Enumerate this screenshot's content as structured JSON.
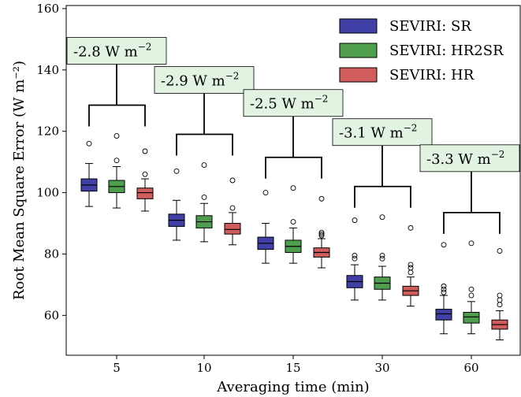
{
  "chart_data": {
    "type": "box",
    "xlabel": "Averaging time (min)",
    "ylabel": "Root Mean Square Error (W m⁻²)",
    "ylim": [
      47,
      161
    ],
    "yticks": [
      60,
      80,
      100,
      120,
      140,
      160
    ],
    "grid": false,
    "legend_placement": "top-right",
    "categories": [
      "5",
      "10",
      "15",
      "30",
      "60"
    ],
    "series": [
      {
        "name": "SEVIRI: SR",
        "color": "#3f3fa6",
        "boxes": [
          {
            "whislo": 95.5,
            "q1": 100.5,
            "med": 102.5,
            "q3": 104.5,
            "whishi": 109.5,
            "fliers": [
              116
            ]
          },
          {
            "whislo": 84.5,
            "q1": 89,
            "med": 91,
            "q3": 93,
            "whishi": 97.5,
            "fliers": [
              107
            ]
          },
          {
            "whislo": 77,
            "q1": 81.5,
            "med": 83.5,
            "q3": 85.5,
            "whishi": 90,
            "fliers": [
              100
            ]
          },
          {
            "whislo": 65,
            "q1": 69,
            "med": 71,
            "q3": 73,
            "whishi": 76.5,
            "fliers": [
              78.5,
              79.5,
              91
            ]
          },
          {
            "whislo": 54,
            "q1": 58.5,
            "med": 60.5,
            "q3": 62,
            "whishi": 66.5,
            "fliers": [
              67.5,
              68.5,
              69.5,
              83
            ]
          }
        ]
      },
      {
        "name": "SEVIRI: HR2SR",
        "color": "#4e9e4e",
        "boxes": [
          {
            "whislo": 95,
            "q1": 100,
            "med": 102,
            "q3": 104,
            "whishi": 108.5,
            "fliers": [
              110.5,
              118.5
            ]
          },
          {
            "whislo": 84,
            "q1": 88.5,
            "med": 90.5,
            "q3": 92.5,
            "whishi": 96.5,
            "fliers": [
              98.5,
              109
            ]
          },
          {
            "whislo": 77,
            "q1": 80.5,
            "med": 82.5,
            "q3": 84.5,
            "whishi": 88.5,
            "fliers": [
              90.5,
              101.5
            ]
          },
          {
            "whislo": 65,
            "q1": 68.5,
            "med": 70.5,
            "q3": 72.5,
            "whishi": 76,
            "fliers": [
              78.5,
              79.5,
              92
            ]
          },
          {
            "whislo": 54,
            "q1": 57.5,
            "med": 59.5,
            "q3": 61,
            "whishi": 64.5,
            "fliers": [
              66.5,
              68.5,
              83.5
            ]
          }
        ]
      },
      {
        "name": "SEVIRI: HR",
        "color": "#d05c5c",
        "boxes": [
          {
            "whislo": 94,
            "q1": 98,
            "med": 100,
            "q3": 101.5,
            "whishi": 104.5,
            "fliers": [
              106,
              113.5
            ]
          },
          {
            "whislo": 83,
            "q1": 86.5,
            "med": 88,
            "q3": 90,
            "whishi": 93.5,
            "fliers": [
              95,
              104
            ]
          },
          {
            "whislo": 75.5,
            "q1": 79,
            "med": 80.5,
            "q3": 82,
            "whishi": 85,
            "fliers": [
              86,
              86.5,
              87,
              98
            ]
          },
          {
            "whislo": 63,
            "q1": 66.5,
            "med": 68,
            "q3": 69.5,
            "whishi": 72.5,
            "fliers": [
              74,
              75.5,
              76.5,
              88.5
            ]
          },
          {
            "whislo": 52,
            "q1": 55.5,
            "med": 57,
            "q3": 58.5,
            "whishi": 61.5,
            "fliers": [
              63.5,
              65,
              66.5,
              81
            ]
          }
        ]
      }
    ],
    "annotations": [
      {
        "category": "5",
        "text": "-2.8 W m",
        "exponent": "−2"
      },
      {
        "category": "10",
        "text": "-2.9 W m",
        "exponent": "−2"
      },
      {
        "category": "15",
        "text": "-2.5 W m",
        "exponent": "−2"
      },
      {
        "category": "30",
        "text": "-3.1 W m",
        "exponent": "−2"
      },
      {
        "category": "60",
        "text": "-3.3 W m",
        "exponent": "−2"
      }
    ],
    "annotation_box_color": "#e2f3e2"
  }
}
